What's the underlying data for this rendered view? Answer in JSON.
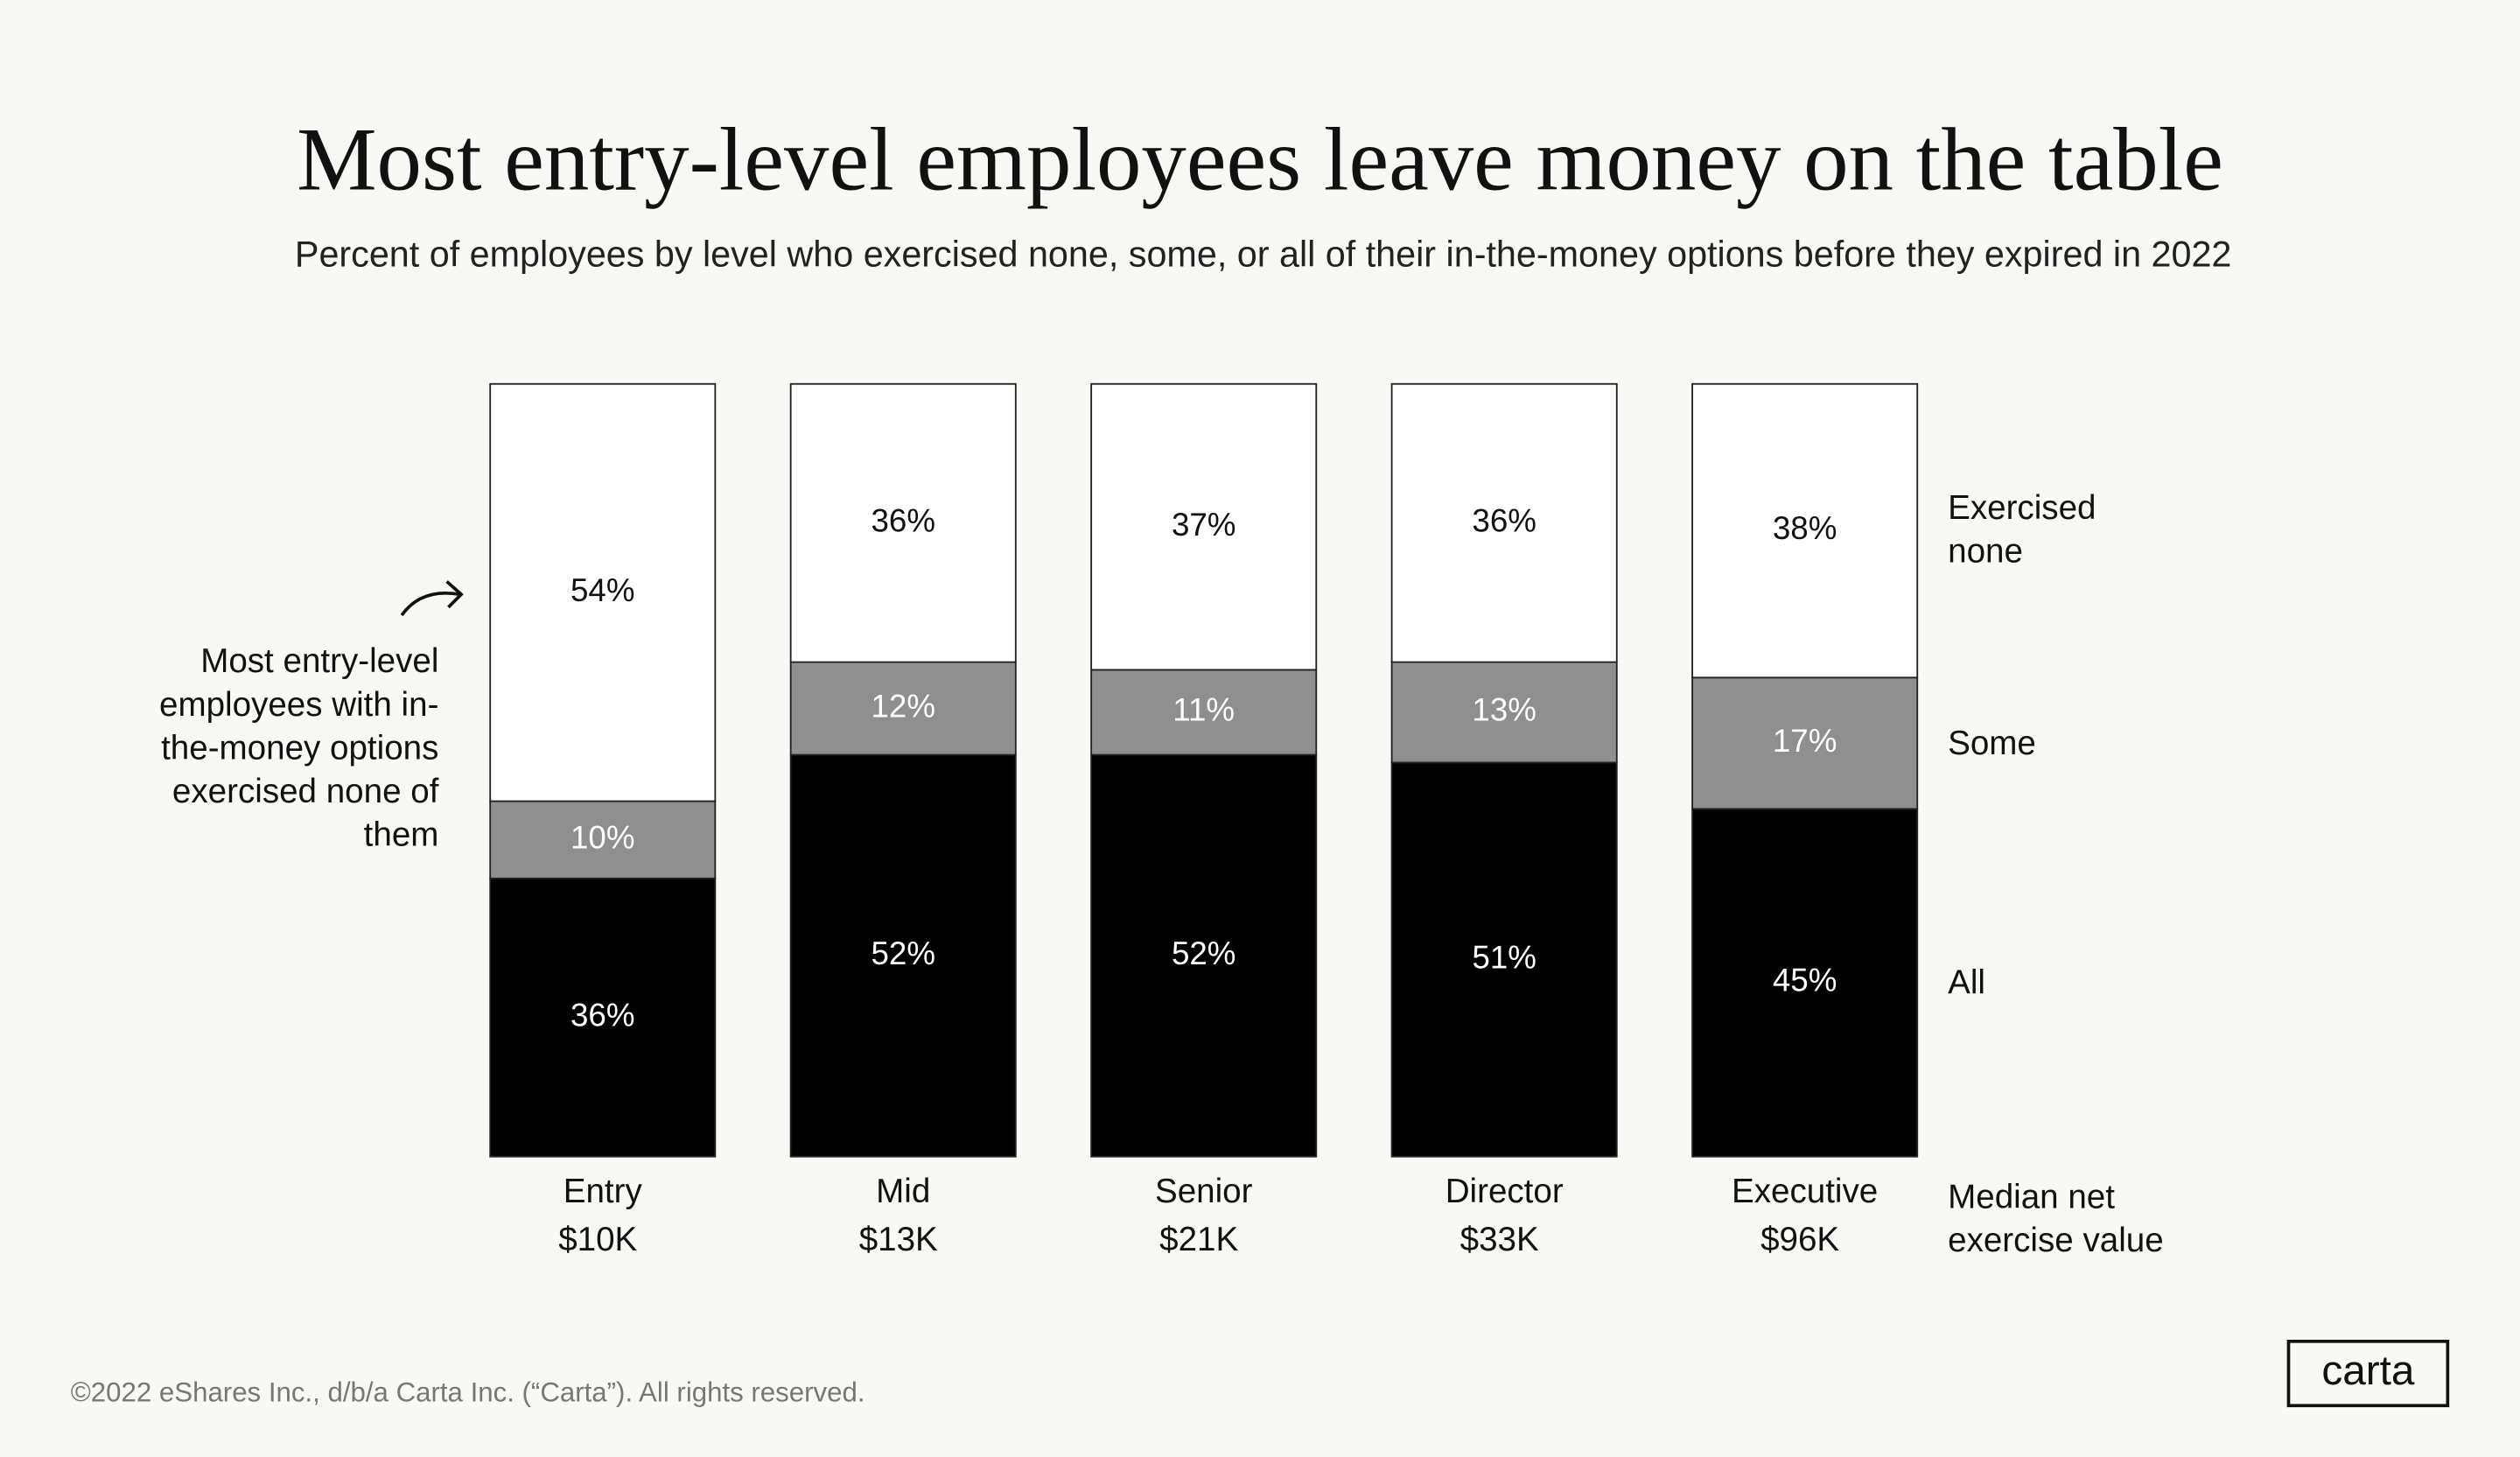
{
  "chart_data": {
    "type": "stacked_bar",
    "title": "Most entry-level employees leave money on the table",
    "subtitle": "Percent of employees by level who exercised none, some, or all of their in-the-money options before they expired in 2022",
    "categories": [
      "Entry",
      "Mid",
      "Senior",
      "Director",
      "Executive"
    ],
    "category_sublabels": [
      "$10K",
      "$13K",
      "$21K",
      "$33K",
      "$96K"
    ],
    "sublabel_title": "Median net exercise value",
    "ylim": [
      0,
      100
    ],
    "legend_position": "right",
    "series": [
      {
        "name": "All",
        "color": "#000000",
        "values": [
          36,
          52,
          52,
          51,
          45
        ],
        "value_labels": [
          "36%",
          "52%",
          "52%",
          "51%",
          "45%"
        ]
      },
      {
        "name": "Some",
        "color": "#8f8f8f",
        "values": [
          10,
          12,
          11,
          13,
          17
        ],
        "value_labels": [
          "10%",
          "12%",
          "11%",
          "13%",
          "17%"
        ]
      },
      {
        "name": "Exercised none",
        "color": "#ffffff",
        "values": [
          54,
          36,
          37,
          36,
          38
        ],
        "value_labels": [
          "54%",
          "36%",
          "37%",
          "36%",
          "38%"
        ]
      }
    ],
    "annotation": "Most entry-level employees with in-the-money options exercised none of them"
  },
  "footer": "©2022 eShares Inc., d/b/a Carta Inc. (“Carta”). All rights reserved.",
  "logo": "carta"
}
